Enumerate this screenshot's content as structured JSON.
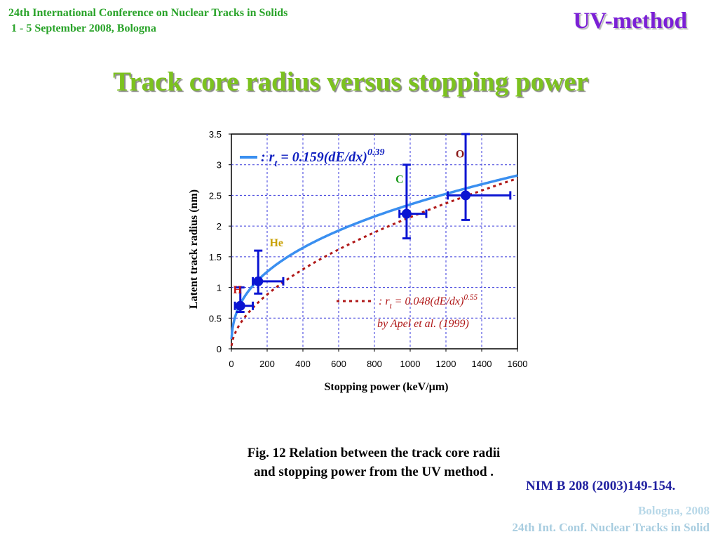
{
  "header": {
    "conference": "24th International Conference on Nuclear Tracks in Solids",
    "dates": " 1 - 5 September 2008, Bologna",
    "method": "UV-method"
  },
  "slide_title": "Track core radius versus stopping power",
  "caption": "Fig. 12 Relation between the track core radii and stopping power from the UV method .",
  "reference": "NIM B 208 (2003)149-154.",
  "footer": {
    "line1": "Bologna,  2008",
    "line2": "24th Int. Conf. Nuclear Tracks in Solid"
  },
  "colors": {
    "header": "#29a329",
    "method": "#7b20d6",
    "title": "#7cc21f",
    "fit_line": "#3a8ff0",
    "apel_line": "#b01818",
    "points": "#0a14d2",
    "grid": "#3a3adc"
  },
  "chart_data": {
    "type": "scatter",
    "title": "",
    "xlabel": "Stopping power (keV/µm)",
    "ylabel": "Latent track radius (nm)",
    "xlim": [
      0,
      1600
    ],
    "ylim": [
      0,
      3.5
    ],
    "xticks": [
      0,
      200,
      400,
      600,
      800,
      1000,
      1200,
      1400,
      1600
    ],
    "yticks": [
      0,
      0.5,
      1,
      1.5,
      2,
      2.5,
      3,
      3.5
    ],
    "x_tick_labels": [
      "0",
      "200",
      "400",
      "600",
      "800",
      "1000",
      "1200",
      "1400",
      "1600"
    ],
    "y_tick_labels": [
      "0",
      "0.5",
      "1",
      "1.5",
      "2",
      "2.5",
      "3",
      "3.5"
    ],
    "grid": true,
    "points": [
      {
        "label": "H",
        "label_color": "#c01010",
        "x": 50,
        "y": 0.7,
        "xmin": 20,
        "xmax": 120,
        "ymin": 0.6,
        "ymax": 1.0
      },
      {
        "label": "He",
        "label_color": "#c8a000",
        "x": 150,
        "y": 1.1,
        "xmin": 120,
        "xmax": 290,
        "ymin": 0.9,
        "ymax": 1.6
      },
      {
        "label": "C",
        "label_color": "#1a9a1a",
        "x": 980,
        "y": 2.2,
        "xmin": 940,
        "xmax": 1090,
        "ymin": 1.8,
        "ymax": 3.0
      },
      {
        "label": "O",
        "label_color": "#8a1a1a",
        "x": 1310,
        "y": 2.5,
        "xmin": 1210,
        "xmax": 1560,
        "ymin": 2.1,
        "ymax": 3.5
      }
    ],
    "series": [
      {
        "name": "fit",
        "style": "solid",
        "coef": 0.159,
        "exp": 0.39
      },
      {
        "name": "apel",
        "style": "dotted",
        "coef": 0.048,
        "exp": 0.55
      }
    ],
    "legend": [
      {
        "prefix": ": r",
        "sub": "t",
        "body": " = 0.159(dE/dx)",
        "sup": "0.39",
        "style": "solid"
      },
      {
        "prefix": ": r",
        "sub": "t",
        "body": " = 0.048(dE/dx)",
        "sup": "0.55",
        "note": "by Apel et al. (1999)",
        "style": "dotted"
      }
    ]
  }
}
